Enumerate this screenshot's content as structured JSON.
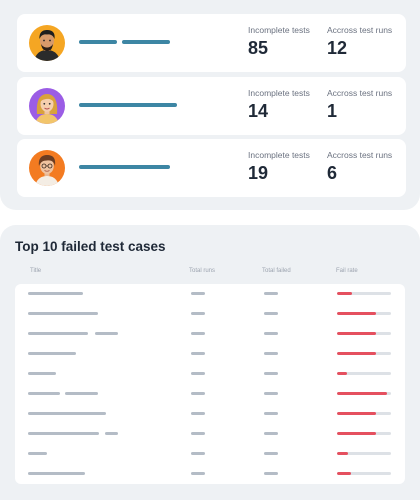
{
  "summary": {
    "users": [
      {
        "incomplete_label": "Incomplete tests",
        "incomplete_value": "85",
        "runs_label": "Accross test runs",
        "runs_value": "12"
      },
      {
        "incomplete_label": "Incomplete tests",
        "incomplete_value": "14",
        "runs_label": "Accross test runs",
        "runs_value": "1"
      },
      {
        "incomplete_label": "Incomplete tests",
        "incomplete_value": "19",
        "runs_label": "Accross test runs",
        "runs_value": "6"
      }
    ]
  },
  "failed_cases": {
    "title": "Top 10 failed test cases",
    "columns": [
      "Title",
      "Total runs",
      "Total failed",
      "Fail rate"
    ],
    "fail_rates": [
      0.28,
      0.72,
      0.72,
      0.72,
      0.18,
      0.92,
      0.72,
      0.72,
      0.2,
      0.26
    ]
  },
  "colors": {
    "accent_bar": "#3d86a4",
    "fail_rate": "#e5505f",
    "avatar_backgrounds": [
      "#f5a623",
      "#9b5de5",
      "#f37b21"
    ]
  }
}
